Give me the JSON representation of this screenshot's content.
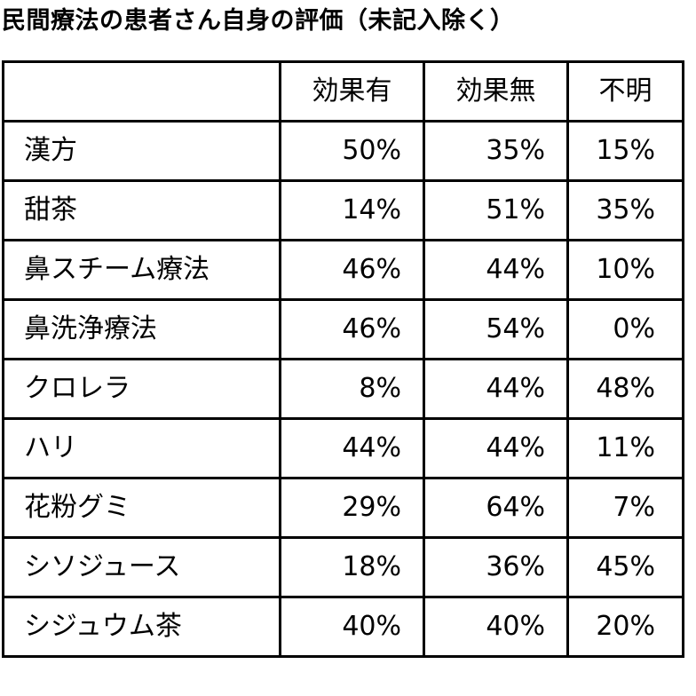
{
  "title": "民間療法の患者さん自身の評価（未記入除く）",
  "table": {
    "headers": [
      "",
      "効果有",
      "効果無",
      "不明"
    ],
    "rows": [
      {
        "label": "漢方",
        "effective": "50%",
        "not_effective": "35%",
        "unknown": "15%"
      },
      {
        "label": "甜茶",
        "effective": "14%",
        "not_effective": "51%",
        "unknown": "35%"
      },
      {
        "label": "鼻スチーム療法",
        "effective": "46%",
        "not_effective": "44%",
        "unknown": "10%"
      },
      {
        "label": "鼻洗浄療法",
        "effective": "46%",
        "not_effective": "54%",
        "unknown": "0%"
      },
      {
        "label": "クロレラ",
        "effective": "8%",
        "not_effective": "44%",
        "unknown": "48%"
      },
      {
        "label": "ハリ",
        "effective": "44%",
        "not_effective": "44%",
        "unknown": "11%"
      },
      {
        "label": "花粉グミ",
        "effective": "29%",
        "not_effective": "64%",
        "unknown": "7%"
      },
      {
        "label": "シソジュース",
        "effective": "18%",
        "not_effective": "36%",
        "unknown": "45%"
      },
      {
        "label": "シジュウム茶",
        "effective": "40%",
        "not_effective": "40%",
        "unknown": "20%"
      }
    ]
  }
}
